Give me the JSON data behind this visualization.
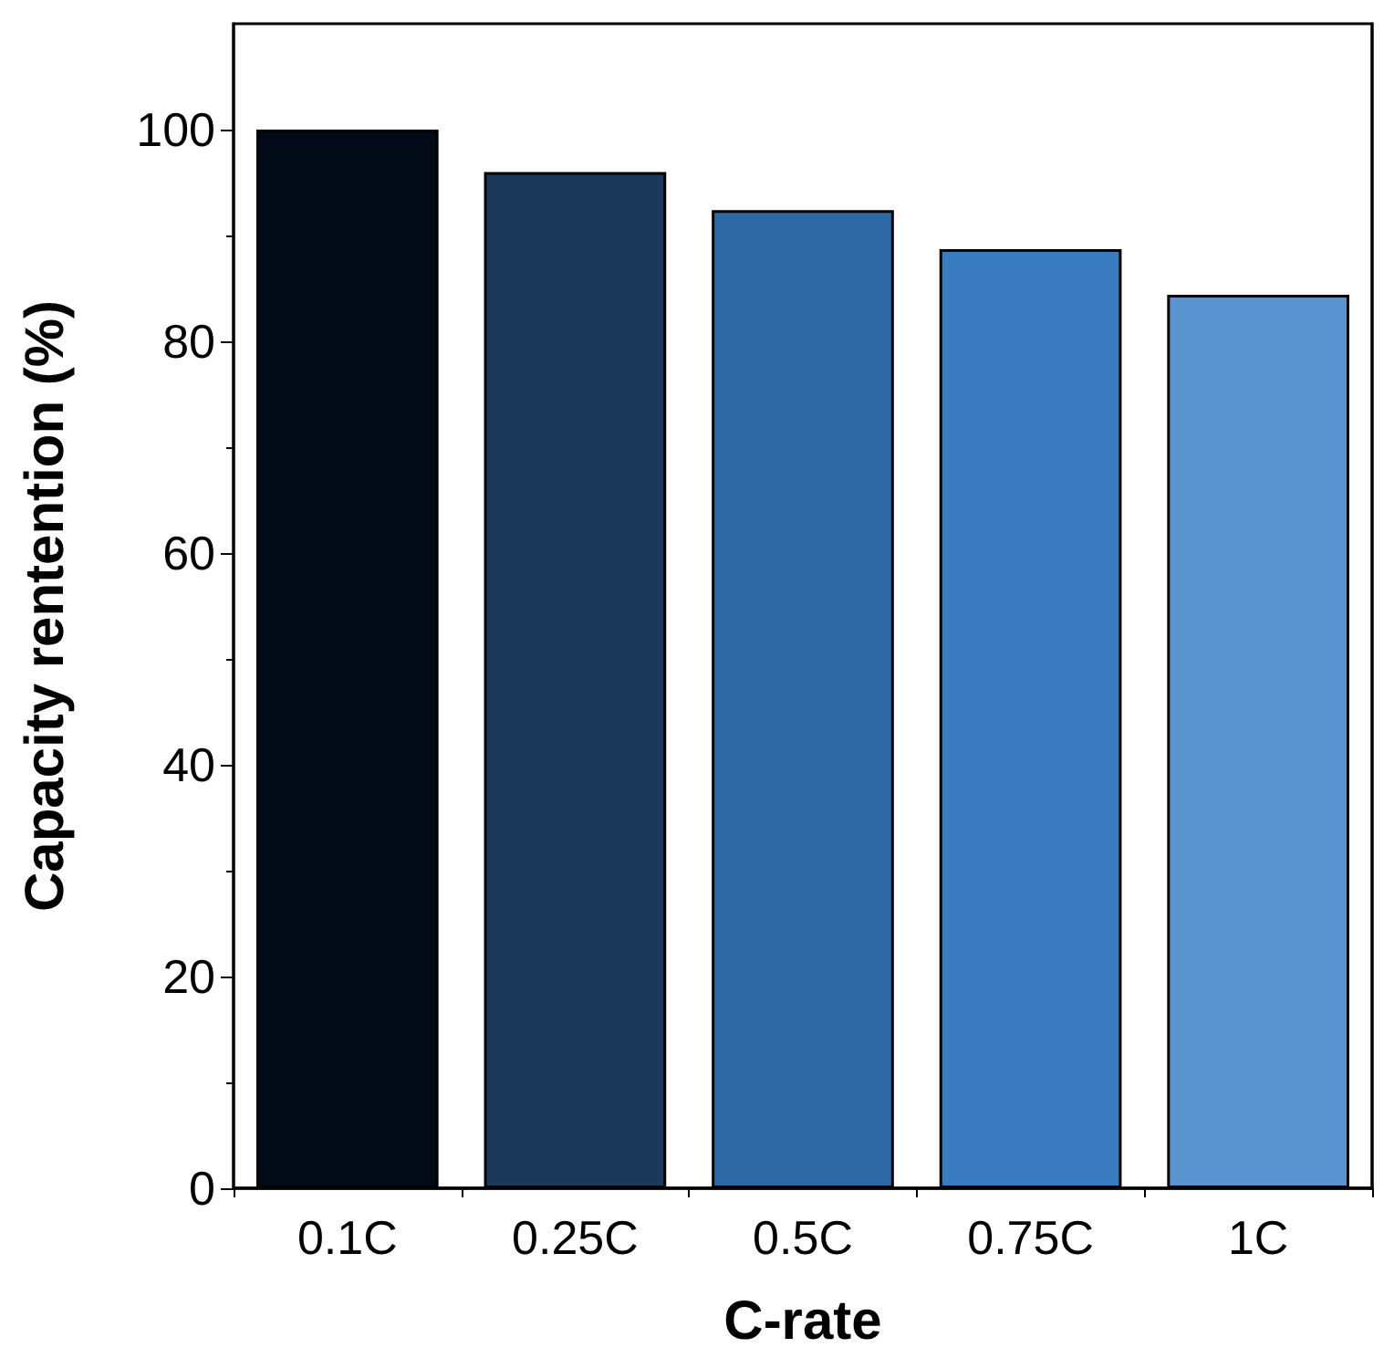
{
  "chart_data": {
    "type": "bar",
    "xlabel": "C-rate",
    "ylabel": "Capacity rentention (%)",
    "categories": [
      "0.1C",
      "0.25C",
      "0.5C",
      "0.75C",
      "1C"
    ],
    "values": [
      100,
      96.0,
      92.4,
      88.7,
      84.4
    ],
    "colors": [
      "#020a18",
      "#1b395b",
      "#306aa4",
      "#3b7bbf",
      "#5a94ce"
    ],
    "ylim": [
      0,
      110
    ],
    "yticks": [
      0,
      20,
      40,
      60,
      80,
      100
    ],
    "grid": false
  }
}
